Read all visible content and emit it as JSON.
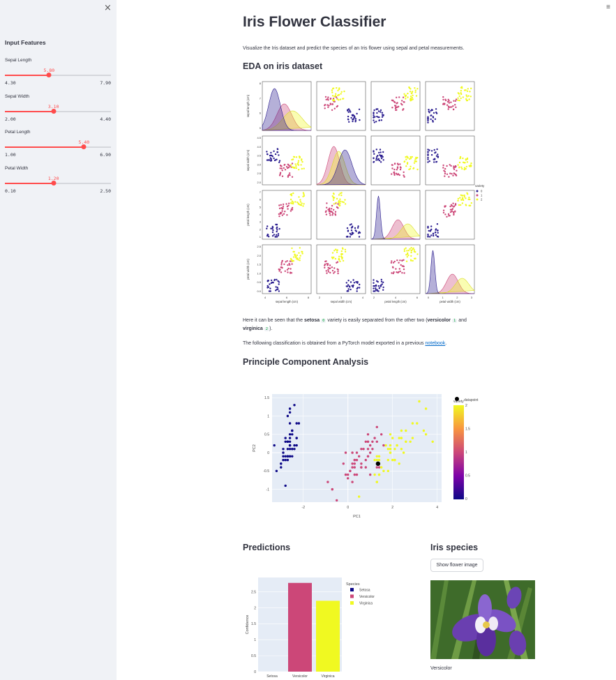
{
  "sidebar": {
    "close": "×",
    "title": "Input Features",
    "sliders": [
      {
        "label": "Sepal Length",
        "value": "5.80",
        "min": "4.30",
        "max": "7.90",
        "fraction": 0.4167
      },
      {
        "label": "Sepal Width",
        "value": "3.10",
        "min": "2.00",
        "max": "4.40",
        "fraction": 0.4583
      },
      {
        "label": "Petal Length",
        "value": "5.40",
        "min": "1.00",
        "max": "6.90",
        "fraction": 0.7458
      },
      {
        "label": "Petal Width",
        "value": "1.20",
        "min": "0.10",
        "max": "2.50",
        "fraction": 0.4583
      }
    ]
  },
  "menu": "≡",
  "main": {
    "title": "Iris Flower Classifier",
    "intro": "Visualize the Iris dataset and predict the species of an Iris flower using sepal and petal measurements.",
    "eda_title": "EDA on iris dataset",
    "eda_text": {
      "p1": "Here it can be seen that the ",
      "setosa": "setosa",
      "code0": "0",
      "p2": " variety is easily separated from the other two (",
      "versicolor": "versicolor",
      "code1": "1",
      "and": " and",
      "virginica": "virginica",
      "code2": "2",
      "end": ")."
    },
    "model_text": "The following classification is obtained from a PyTorch model exported in a previous ",
    "model_link": "notebook",
    "model_end": ".",
    "pca_title": "Principle Component Analysis",
    "pred_title": "Predictions",
    "species_title": "Iris species",
    "show_button": "Show flower image",
    "caption": "Versicolor"
  },
  "pairplot": {
    "vars": [
      "sepal length (cm)",
      "sepal width (cm)",
      "petal length (cm)",
      "petal width (cm)"
    ],
    "legend_title": "variety",
    "legend": [
      "0",
      "1",
      "2"
    ],
    "colors": [
      "#2a1d8f",
      "#cc4778",
      "#f0f921"
    ],
    "ticks": {
      "sepal length (cm)": [
        "4",
        "6",
        "8"
      ],
      "sepal width (cm)": [
        "2",
        "3",
        "4"
      ],
      "petal length (cm)": [
        "2",
        "4",
        "6"
      ],
      "petal width (cm)": [
        "0",
        "1",
        "2",
        "3"
      ]
    },
    "yticks": {
      "row0": [
        "8",
        "7",
        "6",
        "5"
      ],
      "row1": [
        "4.5",
        "4.0",
        "3.5",
        "3.0",
        "2.5",
        "2.0"
      ],
      "row2": [
        "7",
        "6",
        "5",
        "4",
        "3",
        "2",
        "1"
      ],
      "row3": [
        "2.5",
        "2.0",
        "1.5",
        "1.0",
        "0.5",
        "0.0"
      ]
    }
  },
  "chart_data": [
    {
      "type": "scatter",
      "title": "",
      "xlabel": "PC1",
      "ylabel": "PC2",
      "xlim": [
        -3.4,
        4.2
      ],
      "ylim": [
        -1.35,
        1.6
      ],
      "xticks": [
        "-2",
        "0",
        "2",
        "4"
      ],
      "yticks": [
        "1.5",
        "1",
        "0.5",
        "0",
        "-0.5",
        "-1"
      ],
      "colorbar": {
        "title": "variety",
        "ticks": [
          "2",
          "1.5",
          "1",
          "0.5",
          "0"
        ]
      },
      "legend": [
        "datapoint"
      ],
      "datapoint": [
        1.35,
        -0.3
      ],
      "series": [
        {
          "name": "0",
          "points": [
            [
              -2.7,
              0.3
            ],
            [
              -2.9,
              -0.1
            ],
            [
              -2.9,
              0.0
            ],
            [
              -2.7,
              -0.1
            ],
            [
              -2.7,
              0.3
            ],
            [
              -2.3,
              0.8
            ],
            [
              -2.8,
              -0.1
            ],
            [
              -2.6,
              0.2
            ],
            [
              -3.0,
              -0.3
            ],
            [
              -2.7,
              -0.1
            ],
            [
              -2.5,
              0.5
            ],
            [
              -2.6,
              0.1
            ],
            [
              -2.8,
              -0.2
            ],
            [
              -3.2,
              -0.5
            ],
            [
              -2.6,
              1.2
            ],
            [
              -2.4,
              1.3
            ],
            [
              -2.6,
              0.8
            ],
            [
              -2.7,
              0.3
            ],
            [
              -2.2,
              0.8
            ],
            [
              -2.6,
              0.5
            ],
            [
              -2.3,
              0.4
            ],
            [
              -2.6,
              0.4
            ],
            [
              -3.3,
              0.2
            ],
            [
              -2.4,
              0.1
            ],
            [
              -2.5,
              0.1
            ],
            [
              -2.5,
              -0.1
            ],
            [
              -2.5,
              0.1
            ],
            [
              -2.6,
              0.3
            ],
            [
              -2.6,
              0.2
            ],
            [
              -2.6,
              -0.1
            ],
            [
              -2.6,
              -0.1
            ],
            [
              -2.3,
              0.2
            ],
            [
              -2.7,
              1.0
            ],
            [
              -2.6,
              1.1
            ],
            [
              -2.7,
              -0.1
            ],
            [
              -2.9,
              0.1
            ],
            [
              -2.5,
              0.6
            ],
            [
              -2.8,
              0.4
            ],
            [
              -3.0,
              -0.4
            ],
            [
              -2.6,
              0.2
            ],
            [
              -2.8,
              0.3
            ],
            [
              -2.8,
              -0.9
            ],
            [
              -3.0,
              -0.3
            ],
            [
              -2.4,
              0.2
            ],
            [
              -2.3,
              0.4
            ],
            [
              -2.7,
              -0.2
            ],
            [
              -2.5,
              0.6
            ],
            [
              -2.9,
              -0.2
            ],
            [
              -2.5,
              0.6
            ],
            [
              -2.7,
              0.1
            ]
          ]
        },
        {
          "name": "1",
          "points": [
            [
              1.3,
              0.7
            ],
            [
              0.9,
              0.3
            ],
            [
              1.5,
              0.5
            ],
            [
              0.2,
              -0.8
            ],
            [
              1.1,
              0.1
            ],
            [
              0.6,
              -0.4
            ],
            [
              1.1,
              0.3
            ],
            [
              -0.7,
              -1.0
            ],
            [
              1.0,
              0.2
            ],
            [
              0.0,
              -0.7
            ],
            [
              -0.5,
              -1.3
            ],
            [
              0.5,
              -0.1
            ],
            [
              0.3,
              -0.6
            ],
            [
              0.9,
              -0.1
            ],
            [
              -0.1,
              0.0
            ],
            [
              0.9,
              0.5
            ],
            [
              0.6,
              -0.3
            ],
            [
              0.3,
              -0.2
            ],
            [
              1.0,
              -0.6
            ],
            [
              0.1,
              -0.5
            ],
            [
              1.0,
              0.0
            ],
            [
              0.4,
              0.0
            ],
            [
              1.3,
              -0.4
            ],
            [
              0.9,
              -0.1
            ],
            [
              0.7,
              0.1
            ],
            [
              0.9,
              0.3
            ],
            [
              1.3,
              0.3
            ],
            [
              1.6,
              0.2
            ],
            [
              0.8,
              -0.2
            ],
            [
              -0.2,
              -0.3
            ],
            [
              0.0,
              -0.6
            ],
            [
              -0.1,
              -0.6
            ],
            [
              0.2,
              -0.3
            ],
            [
              1.4,
              -0.4
            ],
            [
              0.6,
              -0.4
            ],
            [
              0.8,
              0.3
            ],
            [
              1.2,
              0.4
            ],
            [
              0.8,
              -0.4
            ],
            [
              0.2,
              -0.0
            ],
            [
              0.1,
              -0.5
            ],
            [
              0.4,
              -0.6
            ],
            [
              0.9,
              0.1
            ],
            [
              0.2,
              -0.4
            ],
            [
              -0.7,
              -1.0
            ],
            [
              0.3,
              -0.4
            ],
            [
              0.3,
              -0.2
            ],
            [
              0.4,
              -0.2
            ],
            [
              0.6,
              0.1
            ],
            [
              -0.9,
              -0.8
            ],
            [
              0.3,
              -0.3
            ]
          ]
        },
        {
          "name": "2",
          "points": [
            [
              2.5,
              0.0
            ],
            [
              1.4,
              -0.6
            ],
            [
              2.6,
              0.3
            ],
            [
              2.0,
              -0.2
            ],
            [
              2.4,
              0.1
            ],
            [
              3.4,
              0.6
            ],
            [
              0.5,
              -1.2
            ],
            [
              2.9,
              0.4
            ],
            [
              2.3,
              -0.3
            ],
            [
              2.9,
              0.8
            ],
            [
              1.7,
              0.2
            ],
            [
              1.8,
              -0.2
            ],
            [
              2.2,
              0.2
            ],
            [
              1.3,
              -0.8
            ],
            [
              1.6,
              -0.5
            ],
            [
              1.9,
              0.1
            ],
            [
              1.9,
              0.1
            ],
            [
              3.5,
              1.2
            ],
            [
              3.8,
              0.3
            ],
            [
              1.3,
              -0.8
            ],
            [
              2.4,
              0.4
            ],
            [
              1.2,
              -0.6
            ],
            [
              3.5,
              0.5
            ],
            [
              1.4,
              -0.2
            ],
            [
              2.3,
              0.4
            ],
            [
              2.6,
              0.6
            ],
            [
              1.3,
              -0.2
            ],
            [
              1.3,
              -0.1
            ],
            [
              2.1,
              -0.2
            ],
            [
              2.4,
              0.6
            ],
            [
              2.8,
              0.3
            ],
            [
              3.2,
              1.4
            ],
            [
              2.1,
              -0.2
            ],
            [
              1.4,
              -0.1
            ],
            [
              1.8,
              -0.5
            ],
            [
              3.1,
              0.8
            ],
            [
              2.1,
              0.1
            ],
            [
              1.9,
              0.0
            ],
            [
              1.2,
              -0.2
            ],
            [
              2.0,
              0.4
            ],
            [
              2.2,
              0.2
            ],
            [
              1.9,
              0.5
            ],
            [
              1.4,
              -0.6
            ],
            [
              2.6,
              0.3
            ],
            [
              2.4,
              0.4
            ],
            [
              1.9,
              0.2
            ],
            [
              1.5,
              -0.4
            ],
            [
              1.8,
              0.1
            ],
            [
              1.9,
              0.0
            ],
            [
              1.4,
              -0.3
            ]
          ]
        }
      ]
    },
    {
      "type": "bar",
      "title": "",
      "xlabel": "",
      "ylabel": "Confidence",
      "categories": [
        "Setosa",
        "Versicolor",
        "Virginica"
      ],
      "values": [
        0.0,
        2.78,
        2.22
      ],
      "colors": [
        "#0d0887",
        "#cc4778",
        "#f0f921"
      ],
      "ylim": [
        0,
        2.95
      ],
      "yticks": [
        "0",
        "0.5",
        "1",
        "1.5",
        "2",
        "2.5"
      ],
      "legend_title": "Species"
    }
  ]
}
